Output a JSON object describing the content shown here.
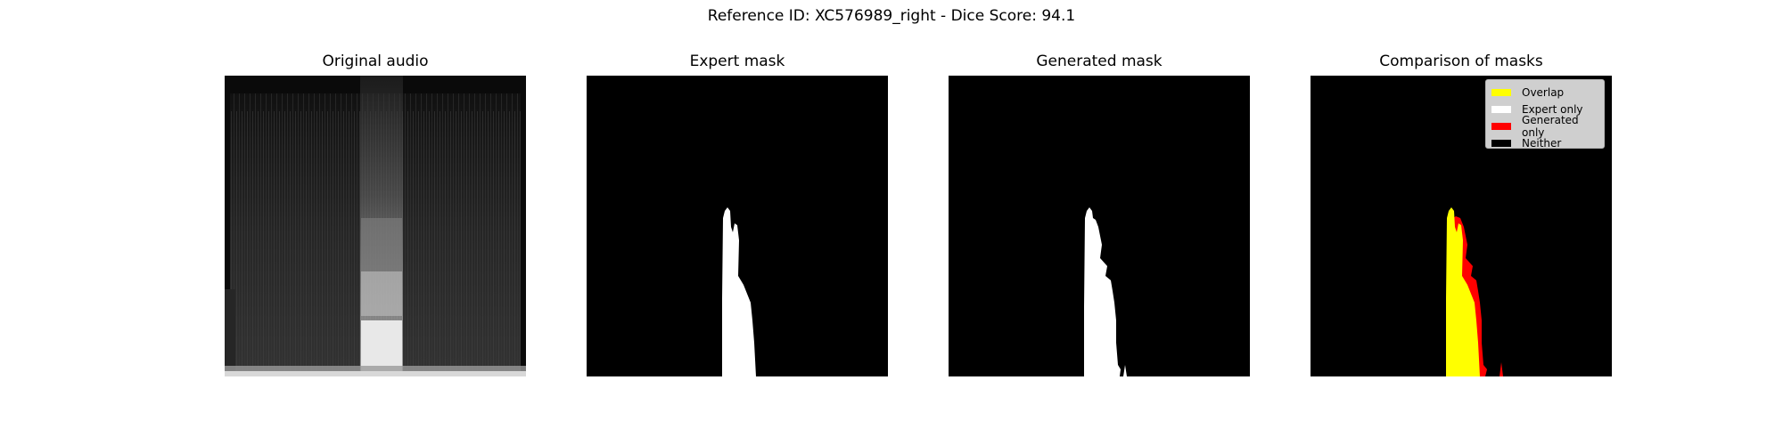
{
  "figure": {
    "suptitle": "Reference ID: XC576989_right - Dice Score: 94.1"
  },
  "panels": [
    {
      "title": "Original audio"
    },
    {
      "title": "Expert mask"
    },
    {
      "title": "Generated mask"
    },
    {
      "title": "Comparison of masks"
    }
  ],
  "legend": {
    "items": [
      {
        "label": "Overlap",
        "color": "#ffff00"
      },
      {
        "label": "Expert only",
        "color": "#ffffff"
      },
      {
        "label": "Generated only",
        "color": "#ff0000"
      },
      {
        "label": "Neither",
        "color": "#000000"
      }
    ]
  },
  "colors": {
    "overlap": "#ffff00",
    "expert_only": "#ffffff",
    "generated_only": "#ff0000",
    "neither": "#000000",
    "legend_background": "#cfcfcf"
  }
}
